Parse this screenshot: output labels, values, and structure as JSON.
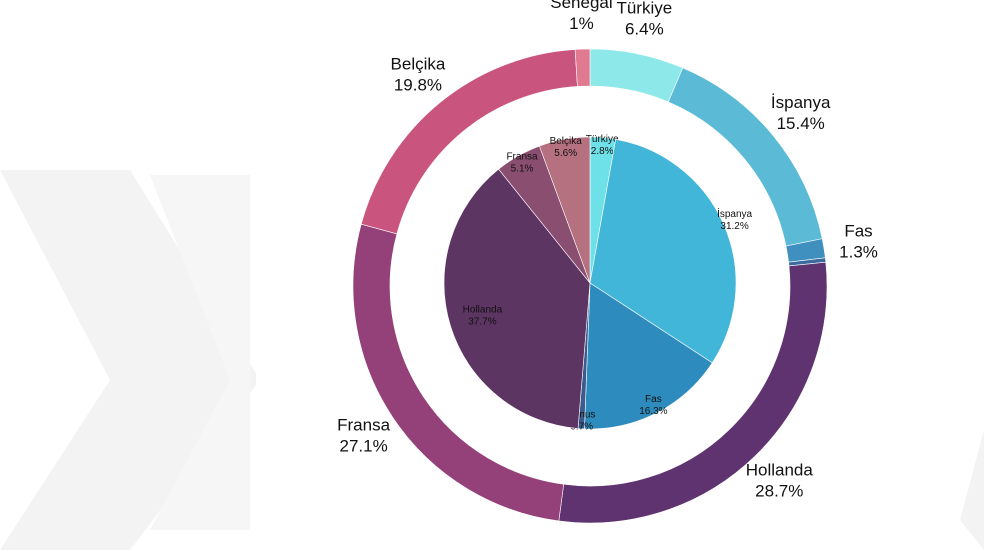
{
  "chart_data": [
    {
      "type": "donut",
      "categories": [
        "Türkiye",
        "İspanya",
        "Fas",
        null,
        "Hollanda",
        "Fransa",
        "Belçika",
        "Senegal"
      ],
      "values": [
        6.4,
        15.4,
        1.3,
        0.3,
        28.7,
        27.1,
        19.8,
        1
      ],
      "value_labels": [
        "6.4%",
        "15.4%",
        "1.3%",
        null,
        "28.7%",
        "27.1%",
        "19.8%",
        "1%"
      ],
      "colors": [
        "#8de8ea",
        "#5bbad5",
        "#3f8fbf",
        "#3a6a9e",
        "#5e3370",
        "#944079",
        "#c9557e",
        "#e07a90"
      ]
    },
    {
      "type": "pie",
      "categories": [
        "Türkiye",
        "İspanya",
        "Fas",
        "Tunus",
        "Hollanda",
        "Fransa",
        "Belçika"
      ],
      "values": [
        2.8,
        31.2,
        16.3,
        0.7,
        37.7,
        5.1,
        5.6
      ],
      "value_labels": [
        "2.8%",
        "31.2%",
        "16.3%",
        "0.7%",
        "37.7%",
        "5.1%",
        "5.6%"
      ],
      "colors": [
        "#6ee0e8",
        "#42b6d8",
        "#2e8bbd",
        "#3b5b8e",
        "#5d3563",
        "#8a4f70",
        "#b5717f"
      ]
    }
  ]
}
